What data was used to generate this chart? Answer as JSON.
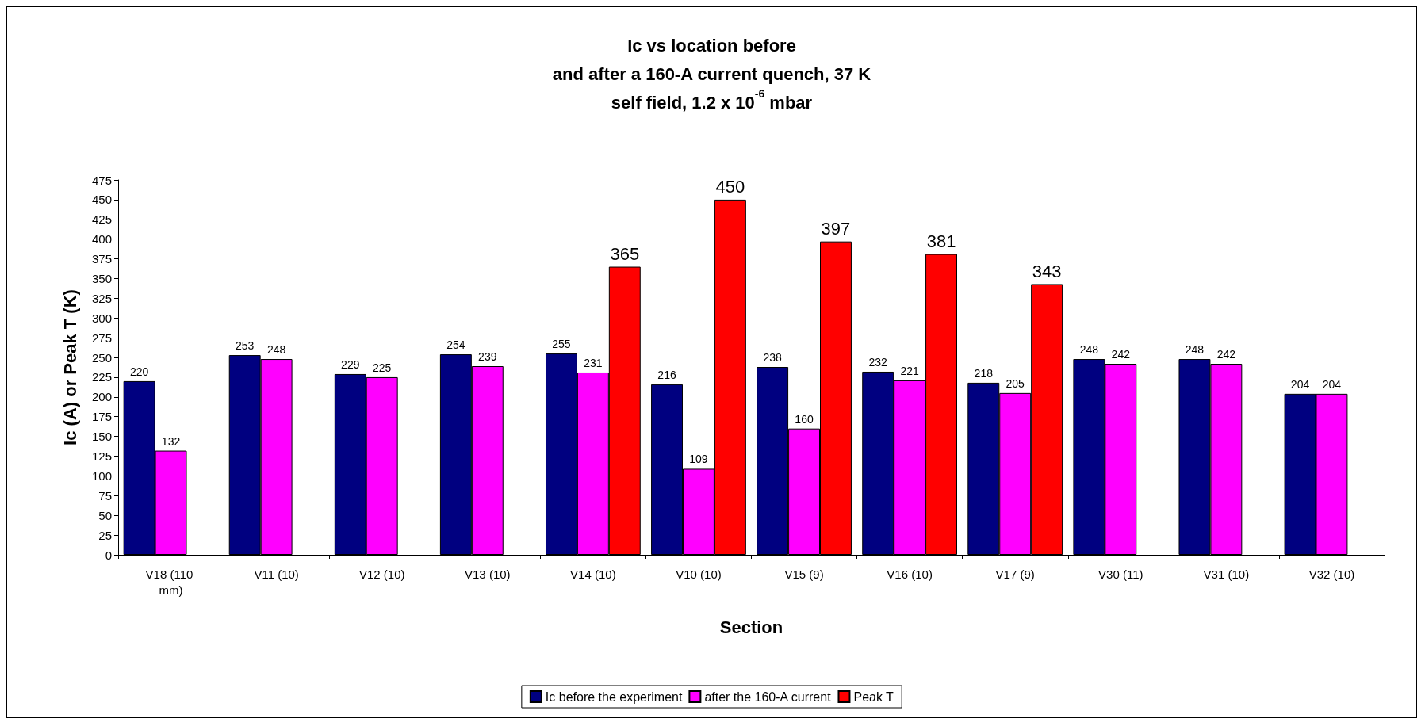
{
  "chart_data": {
    "type": "bar",
    "title": "Ic vs location before\nand after a 160-A current quench, 37 K\nself field, 1.2 x 10$^{-6}$ mbar",
    "xlabel": "Section",
    "ylabel": "Ic (A) or Peak T (K)",
    "categories": [
      "V18 (110 mm)",
      "V11 (10)",
      "V12 (10)",
      "V13 (10)",
      "V14 (10)",
      "V10 (10)",
      "V15 (9)",
      "V16 (10)",
      "V17 (9)",
      "V30 (11)",
      "V31 (10)",
      "V32 (10)"
    ],
    "series": [
      {
        "name": "Ic before the experiment",
        "color": "#000080",
        "values": [
          220,
          253,
          229,
          254,
          255,
          216,
          238,
          232,
          218,
          248,
          248,
          204
        ]
      },
      {
        "name": "after the 160-A current",
        "color": "#ff00ff",
        "values": [
          132,
          248,
          225,
          239,
          231,
          109,
          160,
          221,
          205,
          242,
          242,
          204
        ]
      },
      {
        "name": "Peak T",
        "color": "#ff0000",
        "values": [
          null,
          null,
          null,
          null,
          365,
          450,
          397,
          381,
          343,
          null,
          null,
          null
        ]
      }
    ],
    "ylim": [
      0,
      475
    ],
    "yticks": [
      0,
      25,
      50,
      75,
      100,
      125,
      150,
      175,
      200,
      225,
      250,
      275,
      300,
      325,
      350,
      375,
      400,
      425,
      450,
      475
    ],
    "data_labels": true,
    "grid": false,
    "legend": "bottom"
  }
}
